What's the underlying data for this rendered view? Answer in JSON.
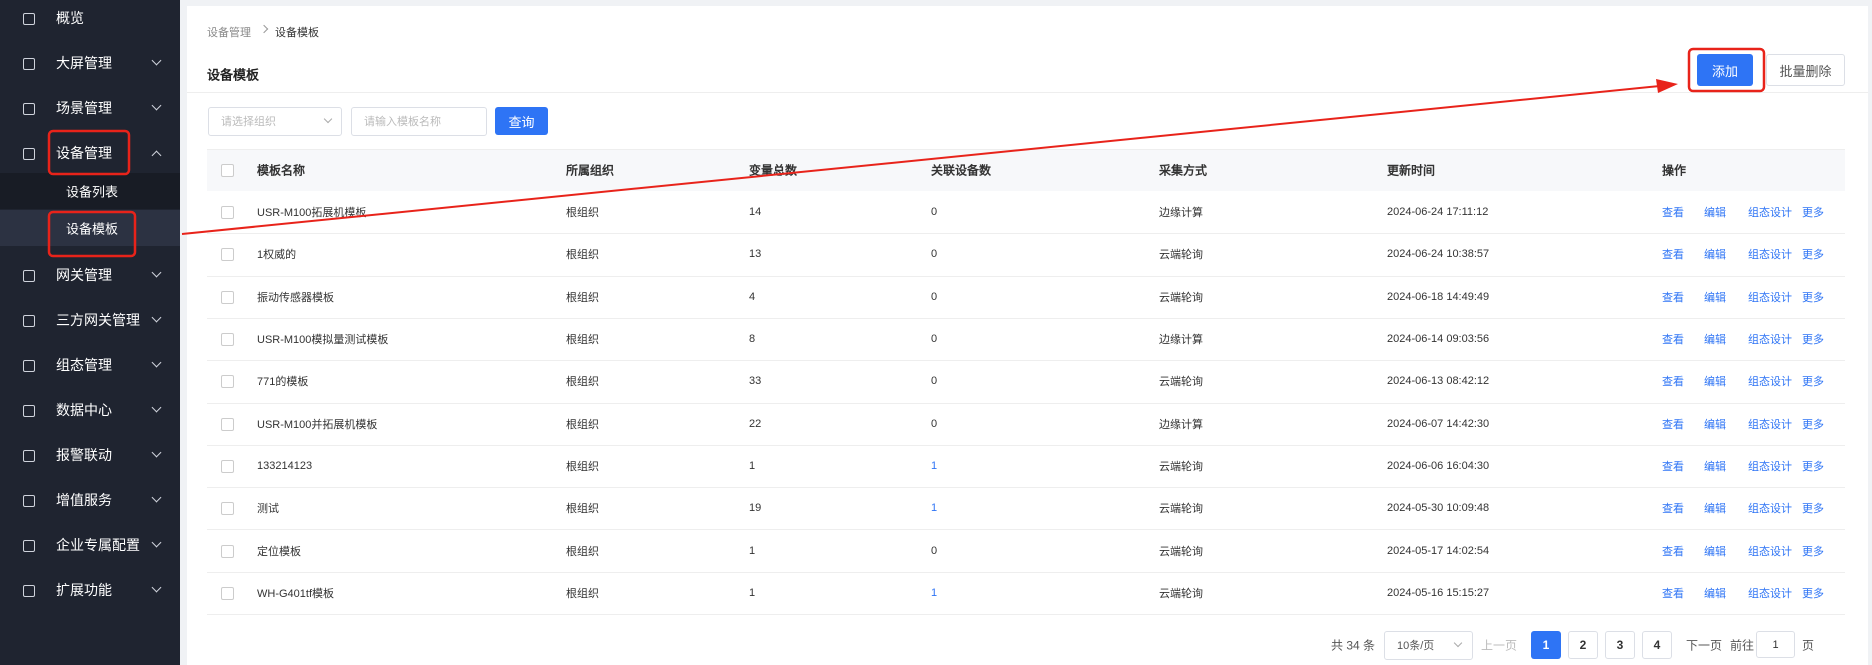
{
  "sidebar": {
    "items": [
      {
        "label": "概览",
        "expandable": false
      },
      {
        "label": "大屏管理",
        "expandable": true
      },
      {
        "label": "场景管理",
        "expandable": true
      },
      {
        "label": "设备管理",
        "expandable": true,
        "expanded": true,
        "children": [
          {
            "label": "设备列表"
          },
          {
            "label": "设备模板",
            "active": true
          }
        ]
      },
      {
        "label": "网关管理",
        "expandable": true
      },
      {
        "label": "三方网关管理",
        "expandable": true
      },
      {
        "label": "组态管理",
        "expandable": true
      },
      {
        "label": "数据中心",
        "expandable": true
      },
      {
        "label": "报警联动",
        "expandable": true
      },
      {
        "label": "增值服务",
        "expandable": true
      },
      {
        "label": "企业专属配置",
        "expandable": true
      },
      {
        "label": "扩展功能",
        "expandable": true
      }
    ]
  },
  "breadcrumb": [
    "设备管理",
    "设备模板"
  ],
  "page_title": "设备模板",
  "buttons": {
    "add": "添加",
    "batch_delete": "批量删除"
  },
  "filters": {
    "org_placeholder": "请选择组织",
    "name_placeholder": "请输入模板名称",
    "query": "查询"
  },
  "table": {
    "headers": [
      "模板名称",
      "所属组织",
      "变量总数",
      "关联设备数",
      "采集方式",
      "更新时间",
      "操作"
    ],
    "rows": [
      [
        "USR-M100拓展机模板",
        "根组织",
        "14",
        "0",
        "边缘计算",
        "2024-06-24 17:11:12"
      ],
      [
        "1权威的",
        "根组织",
        "13",
        "0",
        "云端轮询",
        "2024-06-24 10:38:57"
      ],
      [
        "振动传感器模板",
        "根组织",
        "4",
        "0",
        "云端轮询",
        "2024-06-18 14:49:49"
      ],
      [
        "USR-M100模拟量测试模板",
        "根组织",
        "8",
        "0",
        "边缘计算",
        "2024-06-14 09:03:56"
      ],
      [
        "771的模板",
        "根组织",
        "33",
        "0",
        "云端轮询",
        "2024-06-13 08:42:12"
      ],
      [
        "USR-M100并拓展机模板",
        "根组织",
        "22",
        "0",
        "边缘计算",
        "2024-06-07 14:42:30"
      ],
      [
        "133214123",
        "根组织",
        "1",
        "1",
        "云端轮询",
        "2024-06-06 16:04:30"
      ],
      [
        "测试",
        "根组织",
        "19",
        "1",
        "云端轮询",
        "2024-05-30 10:09:48"
      ],
      [
        "定位模板",
        "根组织",
        "1",
        "0",
        "云端轮询",
        "2024-05-17 14:02:54"
      ],
      [
        "WH-G401tf模板",
        "根组织",
        "1",
        "1",
        "云端轮询",
        "2024-05-16 15:15:27"
      ]
    ],
    "actions": [
      "查看",
      "编辑",
      "组态设计",
      "更多"
    ]
  },
  "pagination": {
    "total": "共 34 条",
    "page_size": "10条/页",
    "prev": "上一页",
    "pages": [
      "1",
      "2",
      "3",
      "4"
    ],
    "current": 0,
    "next": "下一页",
    "goto": "前往",
    "goto_value": "1",
    "page_unit": "页"
  }
}
